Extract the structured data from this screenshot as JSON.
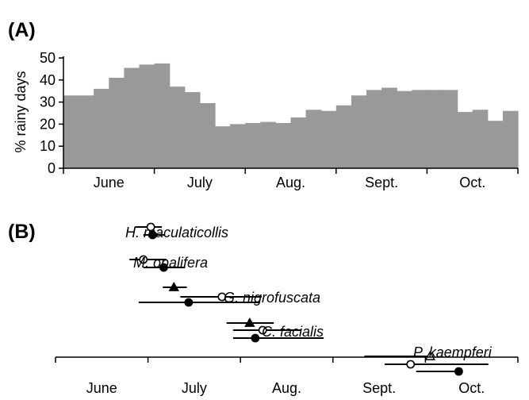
{
  "chart_data": [
    {
      "type": "bar",
      "panel_label": "(A)",
      "title": "",
      "xlabel": "",
      "ylabel": "% rainy days",
      "ylim": [
        0,
        50
      ],
      "yticks": [
        "0",
        "10",
        "20",
        "30",
        "40",
        "50"
      ],
      "month_labels": [
        "June",
        "July",
        "Aug.",
        "Sept.",
        "Oct."
      ],
      "bar_color": "#999999",
      "grid": false,
      "values": [
        33,
        33,
        36,
        41,
        45.5,
        47,
        47.5,
        37,
        34.5,
        29.5,
        19,
        20,
        20.5,
        21,
        20.5,
        23,
        26.5,
        26,
        28.5,
        33,
        35.5,
        36.5,
        35,
        35.5,
        35.5,
        35.5,
        25.5,
        26.5,
        21.5,
        26
      ]
    },
    {
      "type": "range",
      "panel_label": "(B)",
      "month_labels": [
        "June",
        "July",
        "Aug.",
        "Sept.",
        "Oct."
      ],
      "xlim": [
        0.5,
        5.5
      ],
      "rows": [
        {
          "species": "H. maculaticollis",
          "markers": [
            {
              "shape": "open-circle",
              "point": 1.53,
              "from": 1.36,
              "to": 1.65
            },
            {
              "shape": "filled-circle",
              "point": 1.55,
              "from": 1.45,
              "to": 1.68
            }
          ]
        },
        {
          "species": "M. opalifera",
          "markers": [
            {
              "shape": "open-circle",
              "point": 1.45,
              "from": 1.3,
              "to": 1.7
            },
            {
              "shape": "filled-circle",
              "point": 1.67,
              "from": 1.45,
              "to": 1.9
            }
          ]
        },
        {
          "species": "G. nigrofuscata",
          "markers": [
            {
              "shape": "filled-triangle",
              "point": 1.78,
              "from": 1.66,
              "to": 1.92
            },
            {
              "shape": "open-circle",
              "point": 2.3,
              "from": 1.85,
              "to": 2.73
            },
            {
              "shape": "filled-circle",
              "point": 1.94,
              "from": 1.4,
              "to": 2.7
            }
          ]
        },
        {
          "species": "C. facialis",
          "markers": [
            {
              "shape": "filled-triangle",
              "point": 2.6,
              "from": 2.35,
              "to": 2.86
            },
            {
              "shape": "open-circle",
              "point": 2.74,
              "from": 2.42,
              "to": 3.16
            },
            {
              "shape": "filled-circle",
              "point": 2.66,
              "from": 2.42,
              "to": 3.4
            }
          ]
        },
        {
          "species": "P. kaempferi",
          "markers": [
            {
              "shape": "open-triangle",
              "point": 4.55,
              "from": 3.84,
              "to": 4.57
            },
            {
              "shape": "open-circle",
              "point": 4.34,
              "from": 4.06,
              "to": 5.18
            },
            {
              "shape": "filled-circle",
              "point": 4.86,
              "from": 4.4,
              "to": 4.88
            }
          ]
        }
      ]
    }
  ]
}
